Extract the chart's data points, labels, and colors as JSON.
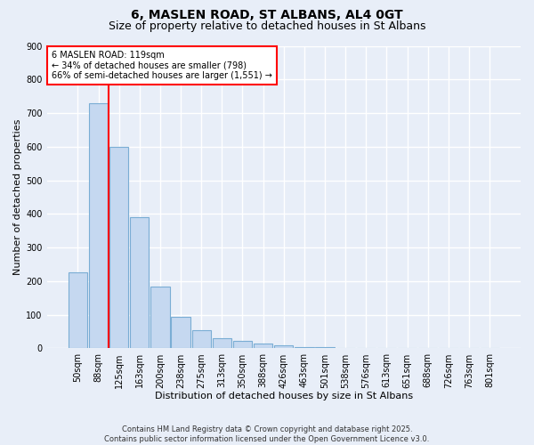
{
  "title": "6, MASLEN ROAD, ST ALBANS, AL4 0GT",
  "subtitle": "Size of property relative to detached houses in St Albans",
  "xlabel": "Distribution of detached houses by size in St Albans",
  "ylabel": "Number of detached properties",
  "categories": [
    "50sqm",
    "88sqm",
    "125sqm",
    "163sqm",
    "200sqm",
    "238sqm",
    "275sqm",
    "313sqm",
    "350sqm",
    "388sqm",
    "426sqm",
    "463sqm",
    "501sqm",
    "538sqm",
    "576sqm",
    "613sqm",
    "651sqm",
    "688sqm",
    "726sqm",
    "763sqm",
    "801sqm"
  ],
  "values": [
    225,
    730,
    600,
    390,
    185,
    95,
    53,
    30,
    22,
    15,
    10,
    5,
    3,
    2,
    2,
    2,
    2,
    2,
    2,
    2,
    1
  ],
  "bar_color": "#c5d8f0",
  "bar_edge_color": "#7aadd4",
  "vline_x_index": 1.5,
  "vline_color": "red",
  "annotation_text": "6 MASLEN ROAD: 119sqm\n← 34% of detached houses are smaller (798)\n66% of semi-detached houses are larger (1,551) →",
  "annotation_box_color": "white",
  "annotation_box_edge": "red",
  "ylim": [
    0,
    900
  ],
  "yticks": [
    0,
    100,
    200,
    300,
    400,
    500,
    600,
    700,
    800,
    900
  ],
  "background_color": "#e8eef8",
  "grid_color": "white",
  "footer": "Contains HM Land Registry data © Crown copyright and database right 2025.\nContains public sector information licensed under the Open Government Licence v3.0.",
  "title_fontsize": 10,
  "subtitle_fontsize": 9,
  "annotation_fontsize": 7,
  "footer_fontsize": 6,
  "tick_fontsize": 7,
  "axis_label_fontsize": 8
}
